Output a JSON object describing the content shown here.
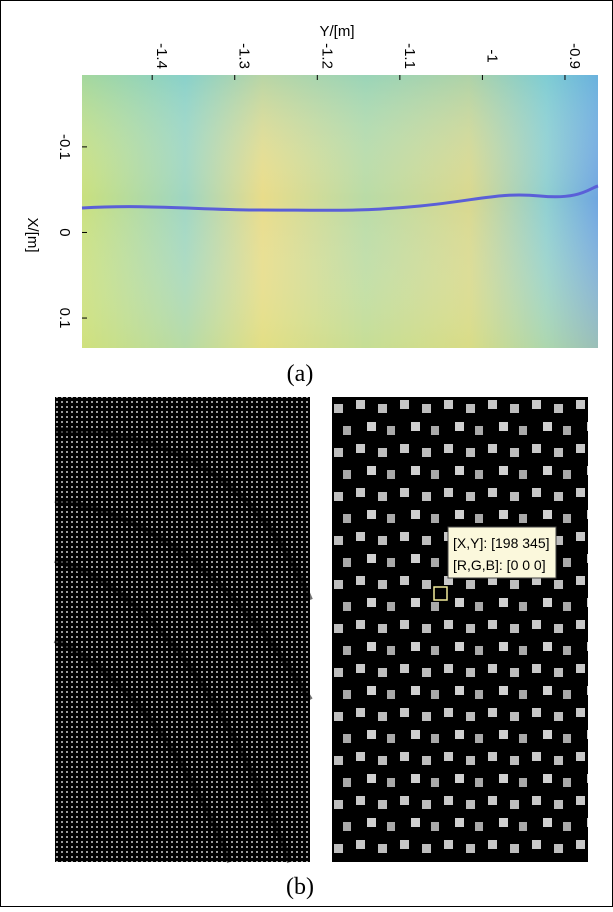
{
  "panel_a": {
    "x_axis_title": "Y/[m]",
    "y_axis_title": "X/[m]",
    "xlim": [
      -1.485,
      -0.86
    ],
    "xticks": [
      -1.4,
      -1.3,
      -1.2,
      -1.1,
      -1,
      -0.9
    ],
    "ylim": [
      -0.184,
      0.135
    ],
    "yticks": [
      -0.1,
      0,
      0.1
    ],
    "caption": "(a)"
  },
  "panel_b": {
    "datatip": [
      "[X,Y]: [198 345]",
      "[R,G,B]: [0 0 0]"
    ],
    "caption": "(b)"
  }
}
